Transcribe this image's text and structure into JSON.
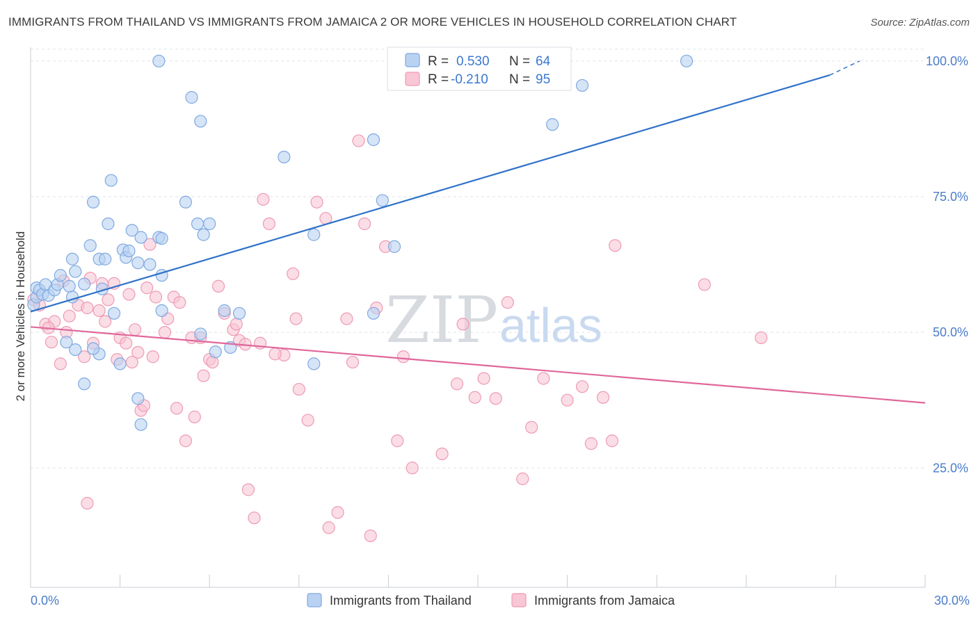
{
  "header": {
    "title": "IMMIGRANTS FROM THAILAND VS IMMIGRANTS FROM JAMAICA 2 OR MORE VEHICLES IN HOUSEHOLD CORRELATION CHART",
    "source": "Source: ZipAtlas.com"
  },
  "legend": {
    "r_label": "R =",
    "n_label": "N =",
    "thailand": {
      "r": "0.530",
      "n": "64"
    },
    "jamaica": {
      "r": "-0.210",
      "n": "95"
    }
  },
  "watermark": {
    "zip": "ZIP",
    "atlas": "atlas"
  },
  "colors": {
    "thailand_fill": "#b9d2f2",
    "thailand_stroke": "#7ea9e0",
    "thailand_line": "#2f72c9",
    "jamaica_fill": "#f8c6d5",
    "jamaica_stroke": "#ee9ab4",
    "jamaica_line": "#e0679a",
    "grid": "#dfe3e8",
    "axis_text": "#4a7cc9"
  },
  "chart_data": {
    "type": "scatter",
    "title": "IMMIGRANTS FROM THAILAND VS IMMIGRANTS FROM JAMAICA 2 OR MORE VEHICLES IN HOUSEHOLD CORRELATION CHART",
    "xlabel": "",
    "ylabel": "2 or more Vehicles in Household",
    "xlim": [
      0,
      30
    ],
    "ylim": [
      3,
      101
    ],
    "x_tick_labels": [
      "0.0%",
      "30.0%"
    ],
    "y_ticks": [
      25,
      50,
      75,
      100
    ],
    "y_tick_labels": [
      "25.0%",
      "50.0%",
      "75.0%",
      "100.0%"
    ],
    "grid": true,
    "legend_position": "top-center",
    "series": [
      {
        "name": "Immigrants from Thailand",
        "r": 0.53,
        "n": 64,
        "trend": {
          "x0": 0,
          "y0": 53.8,
          "x1": 26.8,
          "y1": 97.4,
          "dashed_to_x": 27.8,
          "dashed_to_y": 100
        },
        "points": [
          [
            0.1,
            55.1
          ],
          [
            0.2,
            56.5
          ],
          [
            0.2,
            58.2
          ],
          [
            0.3,
            57.8
          ],
          [
            0.4,
            57.0
          ],
          [
            0.5,
            58.8
          ],
          [
            0.6,
            56.8
          ],
          [
            0.8,
            57.8
          ],
          [
            0.9,
            58.8
          ],
          [
            1.0,
            60.5
          ],
          [
            1.3,
            58.5
          ],
          [
            1.4,
            63.5
          ],
          [
            1.4,
            56.5
          ],
          [
            1.5,
            61.2
          ],
          [
            1.8,
            58.9
          ],
          [
            2.0,
            66.0
          ],
          [
            2.1,
            74.0
          ],
          [
            2.3,
            63.5
          ],
          [
            2.5,
            63.5
          ],
          [
            2.6,
            70.0
          ],
          [
            2.7,
            78.0
          ],
          [
            3.1,
            65.2
          ],
          [
            3.2,
            63.8
          ],
          [
            3.3,
            65.0
          ],
          [
            3.6,
            62.8
          ],
          [
            3.7,
            67.5
          ],
          [
            4.3,
            67.5
          ],
          [
            4.4,
            67.3
          ],
          [
            4.4,
            60.5
          ],
          [
            5.2,
            74.0
          ],
          [
            5.6,
            70.0
          ],
          [
            5.8,
            68.0
          ],
          [
            6.0,
            70.0
          ],
          [
            6.5,
            54.0
          ],
          [
            1.5,
            46.8
          ],
          [
            2.3,
            46.0
          ],
          [
            2.1,
            47.0
          ],
          [
            1.8,
            40.5
          ],
          [
            3.0,
            44.2
          ],
          [
            2.8,
            53.5
          ],
          [
            2.4,
            58.0
          ],
          [
            1.2,
            48.2
          ],
          [
            3.6,
            37.8
          ],
          [
            3.7,
            33.0
          ],
          [
            4.4,
            54.0
          ],
          [
            5.7,
            49.7
          ],
          [
            6.2,
            46.4
          ],
          [
            6.7,
            47.2
          ],
          [
            9.5,
            44.2
          ],
          [
            11.5,
            53.5
          ],
          [
            12.2,
            65.8
          ],
          [
            4.3,
            100
          ],
          [
            5.4,
            93.3
          ],
          [
            5.7,
            88.9
          ],
          [
            8.5,
            82.3
          ],
          [
            9.5,
            68.0
          ],
          [
            11.5,
            85.5
          ],
          [
            11.8,
            74.3
          ],
          [
            17.5,
            88.3
          ],
          [
            18.5,
            95.5
          ],
          [
            22.0,
            100
          ],
          [
            4.0,
            62.5
          ],
          [
            7.0,
            53.5
          ],
          [
            3.4,
            68.8
          ]
        ]
      },
      {
        "name": "Immigrants from Jamaica",
        "r": -0.21,
        "n": 95,
        "trend": {
          "x0": 0,
          "y0": 51.0,
          "x1": 30,
          "y1": 37.0
        },
        "points": [
          [
            0.1,
            56.0
          ],
          [
            0.3,
            55.0
          ],
          [
            0.5,
            51.5
          ],
          [
            0.7,
            48.2
          ],
          [
            0.8,
            52.0
          ],
          [
            1.0,
            44.2
          ],
          [
            1.2,
            50.0
          ],
          [
            1.3,
            53.0
          ],
          [
            1.6,
            55.0
          ],
          [
            1.8,
            45.5
          ],
          [
            2.1,
            48.0
          ],
          [
            2.3,
            54.0
          ],
          [
            2.4,
            59.0
          ],
          [
            2.5,
            52.0
          ],
          [
            2.8,
            59.0
          ],
          [
            2.9,
            45.0
          ],
          [
            3.0,
            49.0
          ],
          [
            3.2,
            48.0
          ],
          [
            3.3,
            57.0
          ],
          [
            3.4,
            44.5
          ],
          [
            3.6,
            46.3
          ],
          [
            3.7,
            35.6
          ],
          [
            3.8,
            36.5
          ],
          [
            4.0,
            66.2
          ],
          [
            4.2,
            56.5
          ],
          [
            4.5,
            50.0
          ],
          [
            4.6,
            52.5
          ],
          [
            4.8,
            56.5
          ],
          [
            5.0,
            55.5
          ],
          [
            5.2,
            30.0
          ],
          [
            5.5,
            34.4
          ],
          [
            5.7,
            49.0
          ],
          [
            5.8,
            42.0
          ],
          [
            6.0,
            45.0
          ],
          [
            6.3,
            58.5
          ],
          [
            6.5,
            53.5
          ],
          [
            6.8,
            50.5
          ],
          [
            7.0,
            48.5
          ],
          [
            7.3,
            21.0
          ],
          [
            7.5,
            15.8
          ],
          [
            7.7,
            48.0
          ],
          [
            7.8,
            74.5
          ],
          [
            8.0,
            70.0
          ],
          [
            8.5,
            45.8
          ],
          [
            8.8,
            60.8
          ],
          [
            8.9,
            52.5
          ],
          [
            9.0,
            39.5
          ],
          [
            9.3,
            33.8
          ],
          [
            9.6,
            74.0
          ],
          [
            9.9,
            71.0
          ],
          [
            10.0,
            14.0
          ],
          [
            10.3,
            16.8
          ],
          [
            10.6,
            52.5
          ],
          [
            10.8,
            44.5
          ],
          [
            11.0,
            85.3
          ],
          [
            11.2,
            70.0
          ],
          [
            11.4,
            12.5
          ],
          [
            11.6,
            54.5
          ],
          [
            11.9,
            65.8
          ],
          [
            12.3,
            30.0
          ],
          [
            12.5,
            45.5
          ],
          [
            12.8,
            25.0
          ],
          [
            13.8,
            27.6
          ],
          [
            14.3,
            40.5
          ],
          [
            14.5,
            51.5
          ],
          [
            14.9,
            38.0
          ],
          [
            15.2,
            41.5
          ],
          [
            15.6,
            37.8
          ],
          [
            16.0,
            55.5
          ],
          [
            16.5,
            23.0
          ],
          [
            16.8,
            32.5
          ],
          [
            17.2,
            41.5
          ],
          [
            18.0,
            37.5
          ],
          [
            18.5,
            40.0
          ],
          [
            18.8,
            29.5
          ],
          [
            19.2,
            38.0
          ],
          [
            19.5,
            30.0
          ],
          [
            19.6,
            66.0
          ],
          [
            22.6,
            58.8
          ],
          [
            24.5,
            49.0
          ],
          [
            1.1,
            59.5
          ],
          [
            2.6,
            56.0
          ],
          [
            4.9,
            36.0
          ],
          [
            6.9,
            51.5
          ],
          [
            3.5,
            50.5
          ],
          [
            1.9,
            54.5
          ],
          [
            5.4,
            49.0
          ],
          [
            7.2,
            47.8
          ],
          [
            4.1,
            45.5
          ],
          [
            2.0,
            60.0
          ],
          [
            1.9,
            18.5
          ],
          [
            0.6,
            50.8
          ],
          [
            3.9,
            58.2
          ],
          [
            6.1,
            44.5
          ],
          [
            8.2,
            46.0
          ]
        ]
      }
    ]
  },
  "bottom_legend": {
    "thailand": "Immigrants from Thailand",
    "jamaica": "Immigrants from Jamaica"
  }
}
